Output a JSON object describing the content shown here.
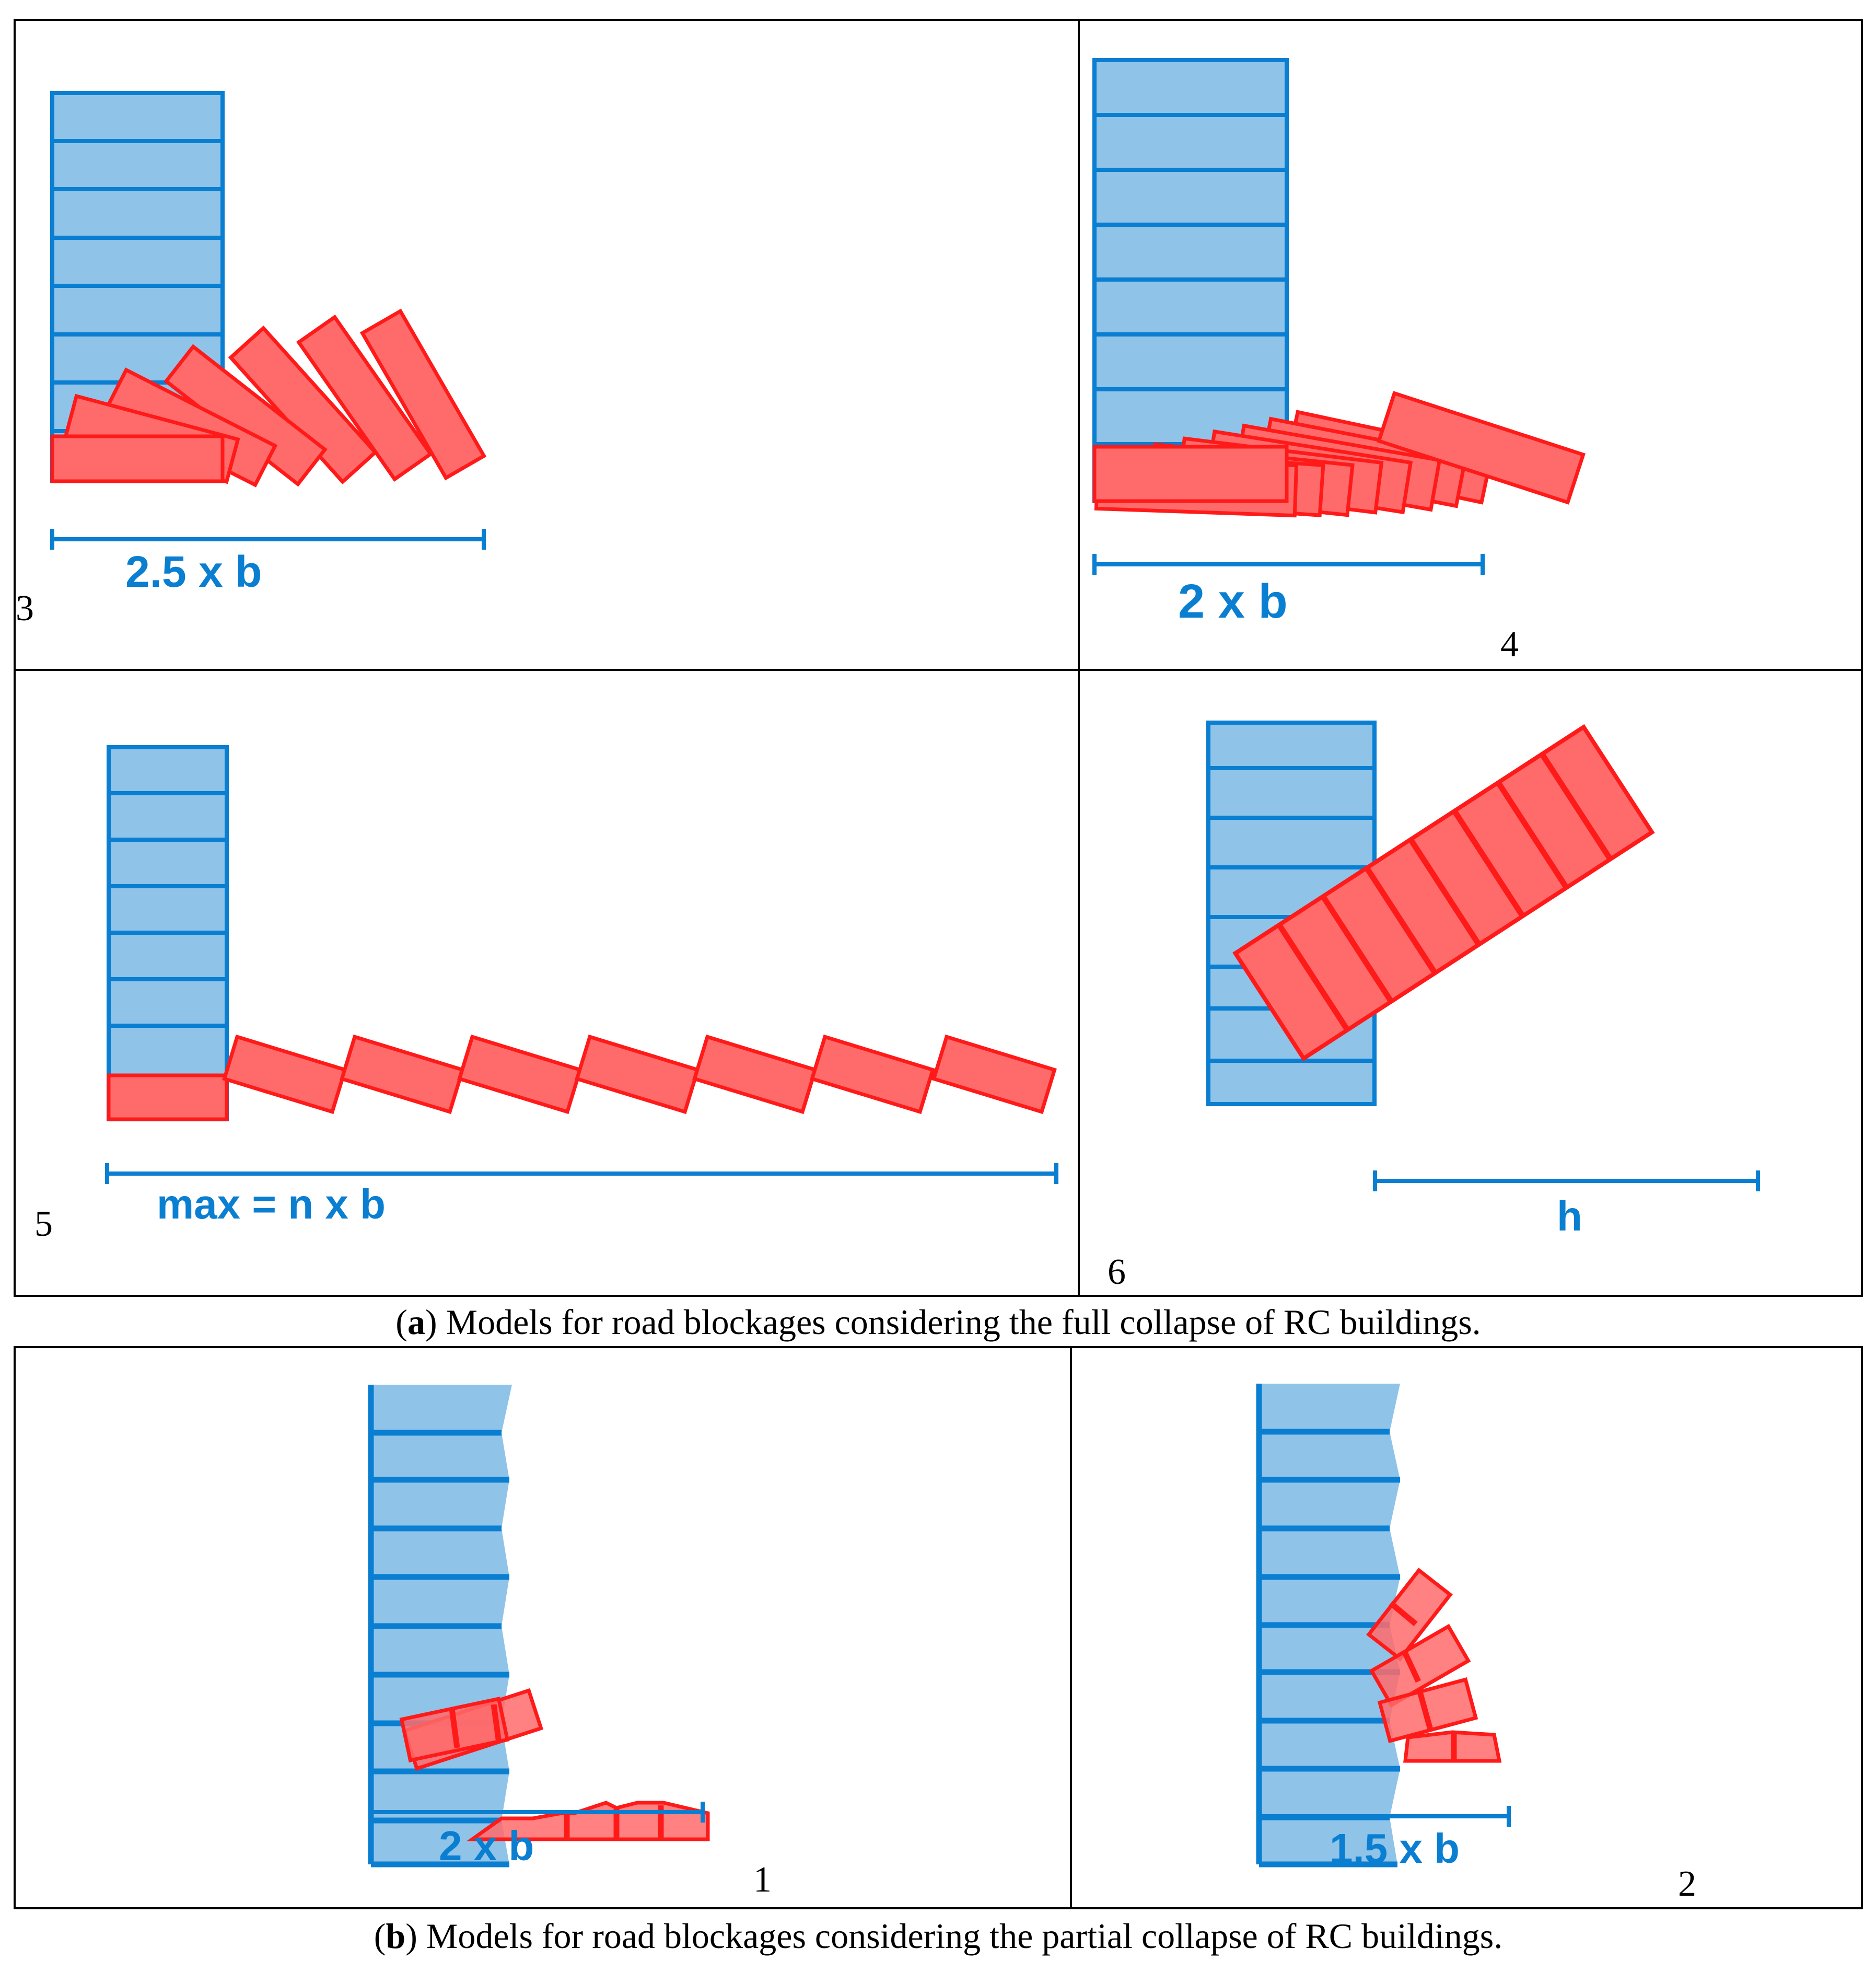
{
  "colors": {
    "building_fill": "#8fc3e8",
    "building_stroke": "#0a7fd1",
    "debris_fill": "#ff6b6b",
    "debris_stroke": "#ff1a1a",
    "dimension": "#0a7fd1",
    "frame": "#000000"
  },
  "panels": [
    {
      "id": "3",
      "number": "3",
      "dimension_label": "2.5 x b"
    },
    {
      "id": "4",
      "number": "4",
      "dimension_label": "2 x b"
    },
    {
      "id": "5",
      "number": "5",
      "dimension_label": "max = n x b"
    },
    {
      "id": "6",
      "number": "6",
      "dimension_label": "h"
    },
    {
      "id": "1",
      "number": "1",
      "dimension_label": "2 x b"
    },
    {
      "id": "2",
      "number": "2",
      "dimension_label": "1.5 x b"
    }
  ],
  "captions": {
    "a": {
      "letter": "a",
      "text": " Models for road blockages considering the full collapse of RC buildings."
    },
    "b": {
      "letter": "b",
      "text": " Models for road blockages considering the partial collapse of RC buildings."
    }
  }
}
